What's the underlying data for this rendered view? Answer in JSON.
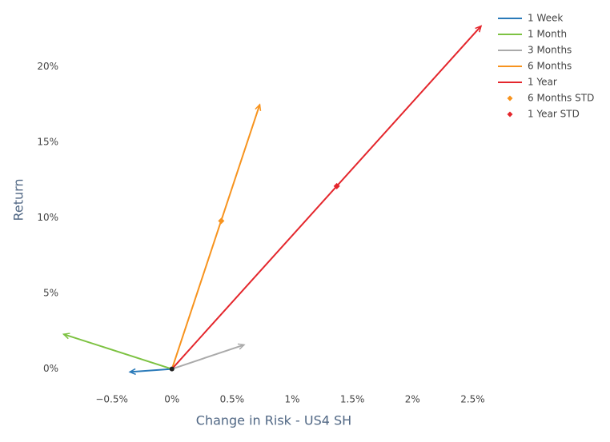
{
  "chart_data": {
    "type": "line",
    "x_label": "Change in Risk - US4 SH",
    "y_label": "Return",
    "xlim": [
      -0.93,
      2.63
    ],
    "ylim": [
      -1.5,
      23.1
    ],
    "xticks": [
      {
        "value": -0.5,
        "label": "−0.5%"
      },
      {
        "value": 0,
        "label": "0%"
      },
      {
        "value": 0.5,
        "label": "0.5%"
      },
      {
        "value": 1,
        "label": "1%"
      },
      {
        "value": 1.5,
        "label": "1.5%"
      },
      {
        "value": 2,
        "label": "2%"
      },
      {
        "value": 2.5,
        "label": "2.5%"
      }
    ],
    "yticks": [
      {
        "value": 0,
        "label": "0%"
      },
      {
        "value": 5,
        "label": "5%"
      },
      {
        "value": 10,
        "label": "10%"
      },
      {
        "value": 15,
        "label": "15%"
      },
      {
        "value": 20,
        "label": "20%"
      }
    ],
    "grid": false,
    "legend": "top-right",
    "series": [
      {
        "name": "1 Week",
        "color": "#2a7ab9",
        "mode": "arrow",
        "x": [
          0,
          -0.35
        ],
        "values": [
          0,
          -0.2
        ]
      },
      {
        "name": "1 Month",
        "color": "#7dc242",
        "mode": "arrow",
        "x": [
          0,
          -0.9
        ],
        "values": [
          0,
          2.3
        ]
      },
      {
        "name": "3 Months",
        "color": "#aaaaaa",
        "mode": "arrow",
        "x": [
          0,
          0.6
        ],
        "values": [
          0,
          1.6
        ]
      },
      {
        "name": "6 Months",
        "color": "#f7931e",
        "mode": "arrow",
        "x": [
          0,
          0.73
        ],
        "values": [
          0,
          17.5
        ]
      },
      {
        "name": "1 Year",
        "color": "#e4262c",
        "mode": "arrow",
        "x": [
          0,
          2.57
        ],
        "values": [
          0,
          22.7
        ]
      },
      {
        "name": "6 Months STD",
        "color": "#f7931e",
        "mode": "markers",
        "x": [
          0.41
        ],
        "values": [
          9.8
        ]
      },
      {
        "name": "1 Year STD",
        "color": "#e4262c",
        "mode": "markers",
        "x": [
          1.37
        ],
        "values": [
          12.1
        ]
      }
    ]
  }
}
